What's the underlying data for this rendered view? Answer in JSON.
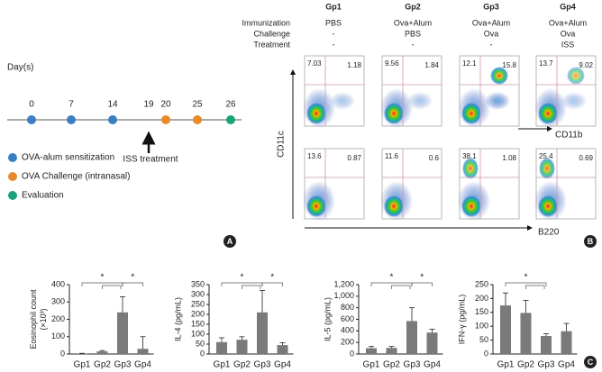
{
  "panel_labels": [
    "A",
    "B",
    "C"
  ],
  "timeline": {
    "axis_label": "Day(s)",
    "days": [
      0,
      7,
      14,
      19,
      20,
      25,
      26
    ],
    "treatment": "ISS treatment",
    "legend": [
      {
        "name": "OVA-alum sensitization",
        "color": "#3a7fc4"
      },
      {
        "name": "OVA Challenge (intranasal)",
        "color": "#e8892a"
      },
      {
        "name": "Evaluation",
        "color": "#1aa37a"
      }
    ]
  },
  "flow": {
    "groups": [
      "Gp1",
      "Gp2",
      "Gp3",
      "Gp4"
    ],
    "row_labels": [
      "Immunization",
      "Challenge",
      "Treatment"
    ],
    "conditions": [
      [
        "PBS",
        "-",
        "-"
      ],
      [
        "Ova+Alum",
        "PBS",
        "-"
      ],
      [
        "Ova+Alum",
        "Ova",
        "-"
      ],
      [
        "Ova+Alum",
        "Ova",
        "ISS"
      ]
    ],
    "y_label": "CD11c",
    "x_labels": [
      "CD11b",
      "B220"
    ],
    "quadrants": [
      [
        [
          7.03,
          1.18
        ],
        [
          9.56,
          1.84
        ],
        [
          12.1,
          15.8
        ],
        [
          13.7,
          9.02
        ]
      ],
      [
        [
          13.6,
          0.87
        ],
        [
          11.6,
          0.6
        ],
        [
          38.1,
          1.08
        ],
        [
          25.4,
          0.69
        ]
      ]
    ]
  },
  "chart_data": [
    {
      "type": "bar",
      "y_label": [
        "Eosinophil count",
        "(×10³)"
      ],
      "categories": [
        "Gp1",
        "Gp2",
        "Gp3",
        "Gp4"
      ],
      "values": [
        2,
        15,
        240,
        30
      ],
      "errors": [
        2,
        5,
        90,
        70
      ],
      "color": "#7a7a7a",
      "ylim": [
        0,
        400
      ],
      "yticks": [
        0,
        100,
        200,
        300,
        400
      ],
      "annotations": [
        "*",
        "*"
      ]
    },
    {
      "type": "bar",
      "y_label": [
        "IL-4 (pg/mL)"
      ],
      "categories": [
        "Gp1",
        "Gp2",
        "Gp3",
        "Gp4"
      ],
      "values": [
        60,
        72,
        210,
        45
      ],
      "errors": [
        22,
        15,
        110,
        12
      ],
      "color": "#7a7a7a",
      "ylim": [
        0,
        350
      ],
      "yticks": [
        0,
        50,
        100,
        150,
        200,
        250,
        300,
        350
      ],
      "annotations": [
        "*",
        "*"
      ]
    },
    {
      "type": "bar",
      "y_label": [
        "IL-5 (pg/mL)"
      ],
      "categories": [
        "Gp1",
        "Gp2",
        "Gp3",
        "Gp4"
      ],
      "values": [
        100,
        105,
        570,
        370
      ],
      "errors": [
        30,
        25,
        230,
        60
      ],
      "color": "#7a7a7a",
      "ylim": [
        0,
        1200
      ],
      "yticks": [
        0,
        200,
        400,
        600,
        800,
        {
          "value": 1000,
          "label": "1,000"
        },
        {
          "value": 1200,
          "label": "1,200"
        }
      ],
      "annotations": [
        "*",
        "*"
      ]
    },
    {
      "type": "bar",
      "y_label": [
        "IFN-γ (pg/mL)"
      ],
      "categories": [
        "Gp1",
        "Gp2",
        "Gp3",
        "Gp4"
      ],
      "values": [
        175,
        148,
        65,
        82
      ],
      "errors": [
        45,
        45,
        8,
        28
      ],
      "color": "#7a7a7a",
      "ylim": [
        0,
        250
      ],
      "yticks": [
        0,
        50,
        100,
        150,
        200,
        250
      ],
      "annotations": [
        "*"
      ]
    }
  ]
}
